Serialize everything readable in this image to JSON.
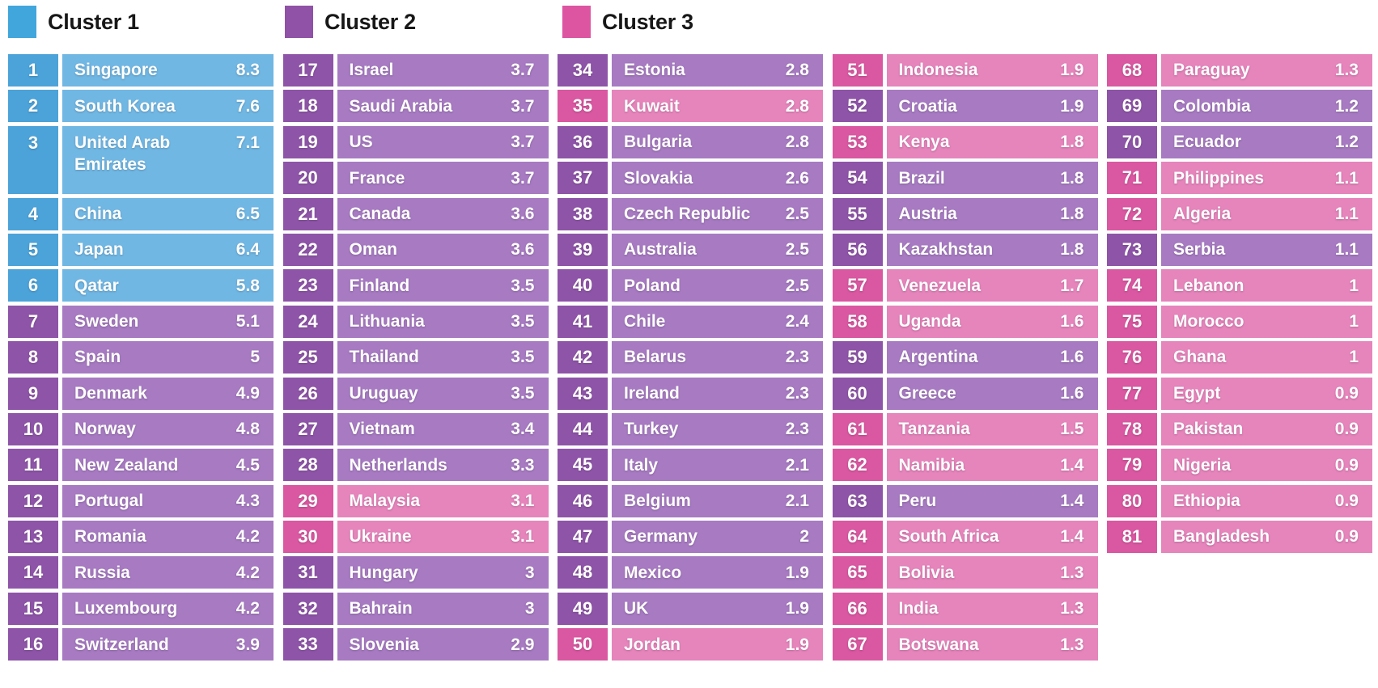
{
  "legend": {
    "items": [
      {
        "label": "Cluster 1",
        "color": "#41A6DC"
      },
      {
        "label": "Cluster 2",
        "color": "#8F52A7"
      },
      {
        "label": "Cluster 3",
        "color": "#DD55A1"
      }
    ]
  },
  "palette": {
    "c1": {
      "rank": "#4BA3D9",
      "cell": "#70B7E4"
    },
    "c2": {
      "rank": "#8E54A8",
      "cell": "#A77AC2"
    },
    "c3": {
      "rank": "#DA57A1",
      "cell": "#E684BC"
    }
  },
  "layout_hints": {
    "column_breaks": [
      16,
      17,
      17,
      17,
      14
    ],
    "column_lefts": [
      10,
      349.5,
      689,
      1028.5,
      1368
    ]
  },
  "chart_data": {
    "type": "table",
    "title": "",
    "legend": [
      "Cluster 1",
      "Cluster 2",
      "Cluster 3"
    ],
    "columns": [
      "rank",
      "country",
      "value",
      "cluster"
    ],
    "rows": [
      {
        "rank": 1,
        "country": "Singapore",
        "value": "8.3",
        "cluster": 1
      },
      {
        "rank": 2,
        "country": "South Korea",
        "value": "7.6",
        "cluster": 1
      },
      {
        "rank": 3,
        "country": "United Arab Emirates",
        "value": "7.1",
        "cluster": 1,
        "tall": true
      },
      {
        "rank": 4,
        "country": "China",
        "value": "6.5",
        "cluster": 1
      },
      {
        "rank": 5,
        "country": "Japan",
        "value": "6.4",
        "cluster": 1
      },
      {
        "rank": 6,
        "country": "Qatar",
        "value": "5.8",
        "cluster": 1
      },
      {
        "rank": 7,
        "country": "Sweden",
        "value": "5.1",
        "cluster": 2
      },
      {
        "rank": 8,
        "country": "Spain",
        "value": "5",
        "cluster": 2
      },
      {
        "rank": 9,
        "country": "Denmark",
        "value": "4.9",
        "cluster": 2
      },
      {
        "rank": 10,
        "country": "Norway",
        "value": "4.8",
        "cluster": 2
      },
      {
        "rank": 11,
        "country": "New Zealand",
        "value": "4.5",
        "cluster": 2
      },
      {
        "rank": 12,
        "country": "Portugal",
        "value": "4.3",
        "cluster": 2
      },
      {
        "rank": 13,
        "country": "Romania",
        "value": "4.2",
        "cluster": 2
      },
      {
        "rank": 14,
        "country": "Russia",
        "value": "4.2",
        "cluster": 2
      },
      {
        "rank": 15,
        "country": "Luxembourg",
        "value": "4.2",
        "cluster": 2
      },
      {
        "rank": 16,
        "country": "Switzerland",
        "value": "3.9",
        "cluster": 2
      },
      {
        "rank": 17,
        "country": "Israel",
        "value": "3.7",
        "cluster": 2
      },
      {
        "rank": 18,
        "country": "Saudi Arabia",
        "value": "3.7",
        "cluster": 2
      },
      {
        "rank": 19,
        "country": "US",
        "value": "3.7",
        "cluster": 2
      },
      {
        "rank": 20,
        "country": "France",
        "value": "3.7",
        "cluster": 2
      },
      {
        "rank": 21,
        "country": "Canada",
        "value": "3.6",
        "cluster": 2
      },
      {
        "rank": 22,
        "country": "Oman",
        "value": "3.6",
        "cluster": 2
      },
      {
        "rank": 23,
        "country": "Finland",
        "value": "3.5",
        "cluster": 2
      },
      {
        "rank": 24,
        "country": "Lithuania",
        "value": "3.5",
        "cluster": 2
      },
      {
        "rank": 25,
        "country": "Thailand",
        "value": "3.5",
        "cluster": 2
      },
      {
        "rank": 26,
        "country": "Uruguay",
        "value": "3.5",
        "cluster": 2
      },
      {
        "rank": 27,
        "country": "Vietnam",
        "value": "3.4",
        "cluster": 2
      },
      {
        "rank": 28,
        "country": "Netherlands",
        "value": "3.3",
        "cluster": 2
      },
      {
        "rank": 29,
        "country": "Malaysia",
        "value": "3.1",
        "cluster": 3
      },
      {
        "rank": 30,
        "country": "Ukraine",
        "value": "3.1",
        "cluster": 3
      },
      {
        "rank": 31,
        "country": "Hungary",
        "value": "3",
        "cluster": 2
      },
      {
        "rank": 32,
        "country": "Bahrain",
        "value": "3",
        "cluster": 2
      },
      {
        "rank": 33,
        "country": "Slovenia",
        "value": "2.9",
        "cluster": 2
      },
      {
        "rank": 34,
        "country": "Estonia",
        "value": "2.8",
        "cluster": 2
      },
      {
        "rank": 35,
        "country": "Kuwait",
        "value": "2.8",
        "cluster": 3
      },
      {
        "rank": 36,
        "country": "Bulgaria",
        "value": "2.8",
        "cluster": 2
      },
      {
        "rank": 37,
        "country": "Slovakia",
        "value": "2.6",
        "cluster": 2
      },
      {
        "rank": 38,
        "country": "Czech Republic",
        "value": "2.5",
        "cluster": 2
      },
      {
        "rank": 39,
        "country": "Australia",
        "value": "2.5",
        "cluster": 2
      },
      {
        "rank": 40,
        "country": "Poland",
        "value": "2.5",
        "cluster": 2
      },
      {
        "rank": 41,
        "country": "Chile",
        "value": "2.4",
        "cluster": 2
      },
      {
        "rank": 42,
        "country": "Belarus",
        "value": "2.3",
        "cluster": 2
      },
      {
        "rank": 43,
        "country": "Ireland",
        "value": "2.3",
        "cluster": 2
      },
      {
        "rank": 44,
        "country": "Turkey",
        "value": "2.3",
        "cluster": 2
      },
      {
        "rank": 45,
        "country": "Italy",
        "value": "2.1",
        "cluster": 2
      },
      {
        "rank": 46,
        "country": "Belgium",
        "value": "2.1",
        "cluster": 2
      },
      {
        "rank": 47,
        "country": "Germany",
        "value": "2",
        "cluster": 2
      },
      {
        "rank": 48,
        "country": "Mexico",
        "value": "1.9",
        "cluster": 2
      },
      {
        "rank": 49,
        "country": "UK",
        "value": "1.9",
        "cluster": 2
      },
      {
        "rank": 50,
        "country": "Jordan",
        "value": "1.9",
        "cluster": 3
      },
      {
        "rank": 51,
        "country": "Indonesia",
        "value": "1.9",
        "cluster": 3
      },
      {
        "rank": 52,
        "country": "Croatia",
        "value": "1.9",
        "cluster": 2
      },
      {
        "rank": 53,
        "country": "Kenya",
        "value": "1.8",
        "cluster": 3
      },
      {
        "rank": 54,
        "country": "Brazil",
        "value": "1.8",
        "cluster": 2
      },
      {
        "rank": 55,
        "country": "Austria",
        "value": "1.8",
        "cluster": 2
      },
      {
        "rank": 56,
        "country": "Kazakhstan",
        "value": "1.8",
        "cluster": 2
      },
      {
        "rank": 57,
        "country": "Venezuela",
        "value": "1.7",
        "cluster": 3
      },
      {
        "rank": 58,
        "country": "Uganda",
        "value": "1.6",
        "cluster": 3
      },
      {
        "rank": 59,
        "country": "Argentina",
        "value": "1.6",
        "cluster": 2
      },
      {
        "rank": 60,
        "country": "Greece",
        "value": "1.6",
        "cluster": 2
      },
      {
        "rank": 61,
        "country": "Tanzania",
        "value": "1.5",
        "cluster": 3
      },
      {
        "rank": 62,
        "country": "Namibia",
        "value": "1.4",
        "cluster": 3
      },
      {
        "rank": 63,
        "country": "Peru",
        "value": "1.4",
        "cluster": 2
      },
      {
        "rank": 64,
        "country": "South Africa",
        "value": "1.4",
        "cluster": 3
      },
      {
        "rank": 65,
        "country": "Bolivia",
        "value": "1.3",
        "cluster": 3
      },
      {
        "rank": 66,
        "country": "India",
        "value": "1.3",
        "cluster": 3
      },
      {
        "rank": 67,
        "country": "Botswana",
        "value": "1.3",
        "cluster": 3
      },
      {
        "rank": 68,
        "country": "Paraguay",
        "value": "1.3",
        "cluster": 3
      },
      {
        "rank": 69,
        "country": "Colombia",
        "value": "1.2",
        "cluster": 2
      },
      {
        "rank": 70,
        "country": "Ecuador",
        "value": "1.2",
        "cluster": 2
      },
      {
        "rank": 71,
        "country": "Philippines",
        "value": "1.1",
        "cluster": 3
      },
      {
        "rank": 72,
        "country": "Algeria",
        "value": "1.1",
        "cluster": 3
      },
      {
        "rank": 73,
        "country": "Serbia",
        "value": "1.1",
        "cluster": 2
      },
      {
        "rank": 74,
        "country": "Lebanon",
        "value": "1",
        "cluster": 3
      },
      {
        "rank": 75,
        "country": "Morocco",
        "value": "1",
        "cluster": 3
      },
      {
        "rank": 76,
        "country": "Ghana",
        "value": "1",
        "cluster": 3
      },
      {
        "rank": 77,
        "country": "Egypt",
        "value": "0.9",
        "cluster": 3
      },
      {
        "rank": 78,
        "country": "Pakistan",
        "value": "0.9",
        "cluster": 3
      },
      {
        "rank": 79,
        "country": "Nigeria",
        "value": "0.9",
        "cluster": 3
      },
      {
        "rank": 80,
        "country": "Ethiopia",
        "value": "0.9",
        "cluster": 3
      },
      {
        "rank": 81,
        "country": "Bangladesh",
        "value": "0.9",
        "cluster": 3
      }
    ]
  }
}
